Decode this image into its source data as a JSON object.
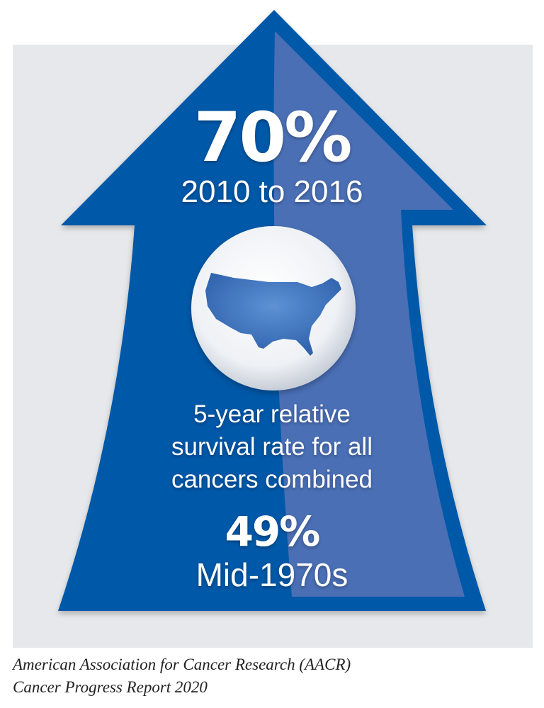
{
  "colors": {
    "arrow_dark": "#0558a8",
    "arrow_light": "#4a6fb5",
    "background_panel": "#e6e8eb",
    "map": "#4a7cc4"
  },
  "icons": {
    "globe": "globe-usa-map-icon",
    "arrow": "up-arrow-icon"
  },
  "current": {
    "value": "70%",
    "period": "2010 to 2016"
  },
  "description": [
    "5-year relative",
    "survival rate for all",
    "cancers combined"
  ],
  "past": {
    "value": "49%",
    "period": "Mid-1970s"
  },
  "source": {
    "line1": "American Association for Cancer Research (AACR)",
    "line2": "Cancer Progress Report 2020"
  }
}
